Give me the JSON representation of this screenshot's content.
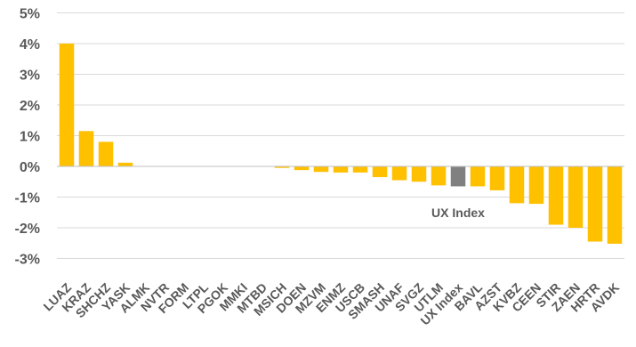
{
  "chart_data": {
    "type": "bar",
    "title": "",
    "xlabel": "",
    "ylabel": "",
    "ylim": [
      -3.5,
      5
    ],
    "y_ticks": [
      "5%",
      "4%",
      "3%",
      "2%",
      "1%",
      "0%",
      "-1%",
      "-2%",
      "-3%"
    ],
    "y_tick_values": [
      5,
      4,
      3,
      2,
      1,
      0,
      -1,
      -2,
      -3
    ],
    "grid": true,
    "categories": [
      "LUAZ",
      "KRAZ",
      "SHCHZ",
      "YASK",
      "ALMK",
      "NVTR",
      "FORM",
      "LTPL",
      "PGOK",
      "MMKI",
      "MTBD",
      "MSICH",
      "DOEN",
      "MZVM",
      "ENMZ",
      "USCB",
      "SMASH",
      "UNAF",
      "SVGZ",
      "UTLM",
      "UX Index",
      "BAVL",
      "AZST",
      "KVBZ",
      "CEEN",
      "STIR",
      "ZAEN",
      "HRTR",
      "AVDK"
    ],
    "values": [
      4.0,
      1.15,
      0.8,
      0.12,
      0,
      0,
      0,
      0,
      0,
      0,
      0,
      -0.05,
      -0.12,
      -0.18,
      -0.2,
      -0.2,
      -0.35,
      -0.45,
      -0.5,
      -0.62,
      -0.65,
      -0.65,
      -0.78,
      -1.2,
      -1.22,
      -1.9,
      -2.0,
      -2.45,
      -2.52
    ],
    "highlight_category": "UX Index",
    "annotation": "UX Index",
    "colors": {
      "bar": "#FFC000",
      "highlight": "#808080",
      "grid": "#D9D9D9",
      "text": "#595959"
    }
  }
}
